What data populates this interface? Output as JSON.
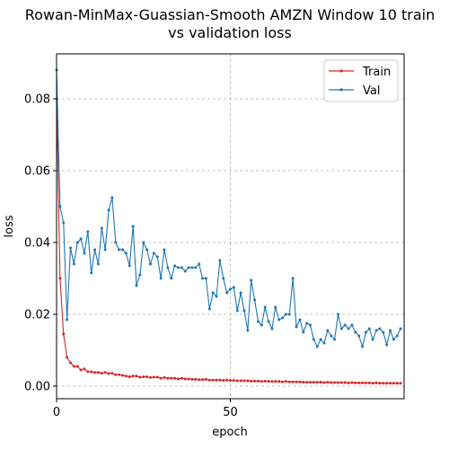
{
  "chart_data": {
    "type": "line",
    "title_line1": "Rowan-MinMax-Guassian-Smooth AMZN Window 10 train",
    "title_line2": "vs validation loss",
    "xlabel": "epoch",
    "ylabel": "loss",
    "xlim": [
      0,
      100
    ],
    "ylim": [
      -0.0035,
      0.0925
    ],
    "xticks": [
      0,
      50
    ],
    "xtick_labels": [
      "0",
      "50"
    ],
    "yticks": [
      0.0,
      0.02,
      0.04,
      0.06,
      0.08
    ],
    "ytick_labels": [
      "0.00",
      "0.02",
      "0.04",
      "0.06",
      "0.08"
    ],
    "grid": true,
    "legend_position": "top-right",
    "series": [
      {
        "name": "Train",
        "color": "#d62728",
        "x": [
          0,
          1,
          2,
          3,
          4,
          5,
          6,
          7,
          8,
          9,
          10,
          11,
          12,
          13,
          14,
          15,
          16,
          17,
          18,
          19,
          20,
          21,
          22,
          23,
          24,
          25,
          26,
          27,
          28,
          29,
          30,
          31,
          32,
          33,
          34,
          35,
          36,
          37,
          38,
          39,
          40,
          41,
          42,
          43,
          44,
          45,
          46,
          47,
          48,
          49,
          50,
          51,
          52,
          53,
          54,
          55,
          56,
          57,
          58,
          59,
          60,
          61,
          62,
          63,
          64,
          65,
          66,
          67,
          68,
          69,
          70,
          71,
          72,
          73,
          74,
          75,
          76,
          77,
          78,
          79,
          80,
          81,
          82,
          83,
          84,
          85,
          86,
          87,
          88,
          89,
          90,
          91,
          92,
          93,
          94,
          95,
          96,
          97,
          98,
          99
        ],
        "values": [
          0.08,
          0.03,
          0.0145,
          0.008,
          0.0065,
          0.0055,
          0.0055,
          0.0045,
          0.0048,
          0.004,
          0.004,
          0.0038,
          0.0038,
          0.0036,
          0.0038,
          0.0035,
          0.0036,
          0.0032,
          0.0032,
          0.003,
          0.0028,
          0.0026,
          0.0028,
          0.0028,
          0.0025,
          0.0026,
          0.0026,
          0.0024,
          0.0025,
          0.0025,
          0.0022,
          0.0024,
          0.0022,
          0.0022,
          0.0022,
          0.002,
          0.0022,
          0.002,
          0.002,
          0.0019,
          0.0019,
          0.0018,
          0.0018,
          0.0019,
          0.0017,
          0.0017,
          0.0017,
          0.0017,
          0.0016,
          0.0017,
          0.0016,
          0.0016,
          0.0015,
          0.0015,
          0.0015,
          0.0015,
          0.0014,
          0.0014,
          0.0014,
          0.0013,
          0.0014,
          0.0013,
          0.0013,
          0.0013,
          0.0013,
          0.0012,
          0.0013,
          0.0012,
          0.0012,
          0.0012,
          0.0012,
          0.0011,
          0.0011,
          0.0011,
          0.0011,
          0.0011,
          0.0011,
          0.001,
          0.0011,
          0.001,
          0.001,
          0.001,
          0.001,
          0.001,
          0.0009,
          0.001,
          0.0009,
          0.0009,
          0.0009,
          0.0009,
          0.0009,
          0.0008,
          0.0009,
          0.0008,
          0.0008,
          0.0008,
          0.0008,
          0.0008,
          0.0008,
          0.0008
        ]
      },
      {
        "name": "Val",
        "color": "#1f77b4",
        "x": [
          0,
          1,
          2,
          3,
          4,
          5,
          6,
          7,
          8,
          9,
          10,
          11,
          12,
          13,
          14,
          15,
          16,
          17,
          18,
          19,
          20,
          21,
          22,
          23,
          24,
          25,
          26,
          27,
          28,
          29,
          30,
          31,
          32,
          33,
          34,
          35,
          36,
          37,
          38,
          39,
          40,
          41,
          42,
          43,
          44,
          45,
          46,
          47,
          48,
          49,
          50,
          51,
          52,
          53,
          54,
          55,
          56,
          57,
          58,
          59,
          60,
          61,
          62,
          63,
          64,
          65,
          66,
          67,
          68,
          69,
          70,
          71,
          72,
          73,
          74,
          75,
          76,
          77,
          78,
          79,
          80,
          81,
          82,
          83,
          84,
          85,
          86,
          87,
          88,
          89,
          90,
          91,
          92,
          93,
          94,
          95,
          96,
          97,
          98,
          99
        ],
        "values": [
          0.088,
          0.05,
          0.0455,
          0.0185,
          0.0385,
          0.034,
          0.04,
          0.041,
          0.037,
          0.043,
          0.0315,
          0.038,
          0.034,
          0.044,
          0.038,
          0.049,
          0.0525,
          0.04,
          0.038,
          0.038,
          0.037,
          0.0335,
          0.0445,
          0.028,
          0.031,
          0.04,
          0.038,
          0.034,
          0.037,
          0.036,
          0.03,
          0.038,
          0.033,
          0.03,
          0.0335,
          0.033,
          0.033,
          0.032,
          0.033,
          0.033,
          0.033,
          0.034,
          0.03,
          0.03,
          0.0215,
          0.026,
          0.025,
          0.035,
          0.03,
          0.026,
          0.027,
          0.0275,
          0.021,
          0.026,
          0.021,
          0.0155,
          0.0295,
          0.024,
          0.018,
          0.017,
          0.022,
          0.018,
          0.016,
          0.022,
          0.0185,
          0.019,
          0.02,
          0.02,
          0.03,
          0.0165,
          0.0185,
          0.015,
          0.0175,
          0.017,
          0.013,
          0.011,
          0.013,
          0.012,
          0.0155,
          0.014,
          0.013,
          0.02,
          0.016,
          0.017,
          0.016,
          0.017,
          0.015,
          0.014,
          0.011,
          0.015,
          0.016,
          0.013,
          0.0155,
          0.016,
          0.015,
          0.0115,
          0.0155,
          0.013,
          0.014,
          0.016
        ]
      }
    ]
  }
}
